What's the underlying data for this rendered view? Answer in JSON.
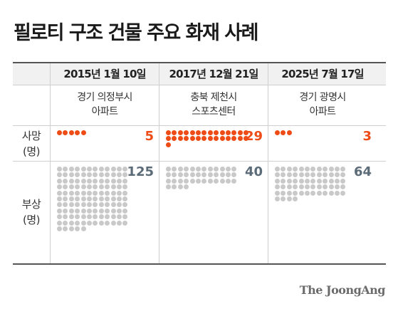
{
  "title": "필로티 구조 건물 주요 화재 사례",
  "source": "The JoongAng",
  "colors": {
    "death": "#ee4b17",
    "injury": "#c9c9c9",
    "injury_number": "#5b6b78"
  },
  "chart_data": {
    "type": "table",
    "columns": [
      {
        "date": "2015년 1월 10일",
        "place_line1": "경기 의정부시",
        "place_line2": "아파트",
        "deaths": 5,
        "injuries": 125
      },
      {
        "date": "2017년 12월 21일",
        "place_line1": "충북 제천시",
        "place_line2": "스포츠센터",
        "deaths": 29,
        "injuries": 40
      },
      {
        "date": "2025년 7월 17일",
        "place_line1": "경기 광명시",
        "place_line2": "아파트",
        "deaths": 3,
        "injuries": 64
      }
    ],
    "rows": [
      {
        "label_line1": "사망",
        "label_line2": "(명)"
      },
      {
        "label_line1": "부상",
        "label_line2": "(명)"
      }
    ]
  }
}
